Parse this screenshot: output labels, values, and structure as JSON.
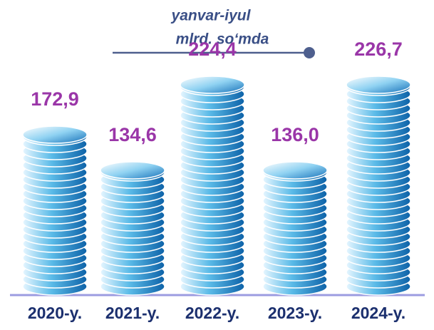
{
  "chart_data": {
    "type": "bar",
    "subtitle": [
      "yanvar-iyul",
      "mlrd. so‘mda"
    ],
    "categories": [
      "2020-y.",
      "2021-y.",
      "2022-y.",
      "2023-y.",
      "2024-y."
    ],
    "values": [
      172.9,
      134.6,
      224.4,
      136.0,
      226.7
    ],
    "value_labels": [
      "172,9",
      "134,6",
      "224,4",
      "136,0",
      "226,7"
    ],
    "color": "#1a7fc4"
  }
}
